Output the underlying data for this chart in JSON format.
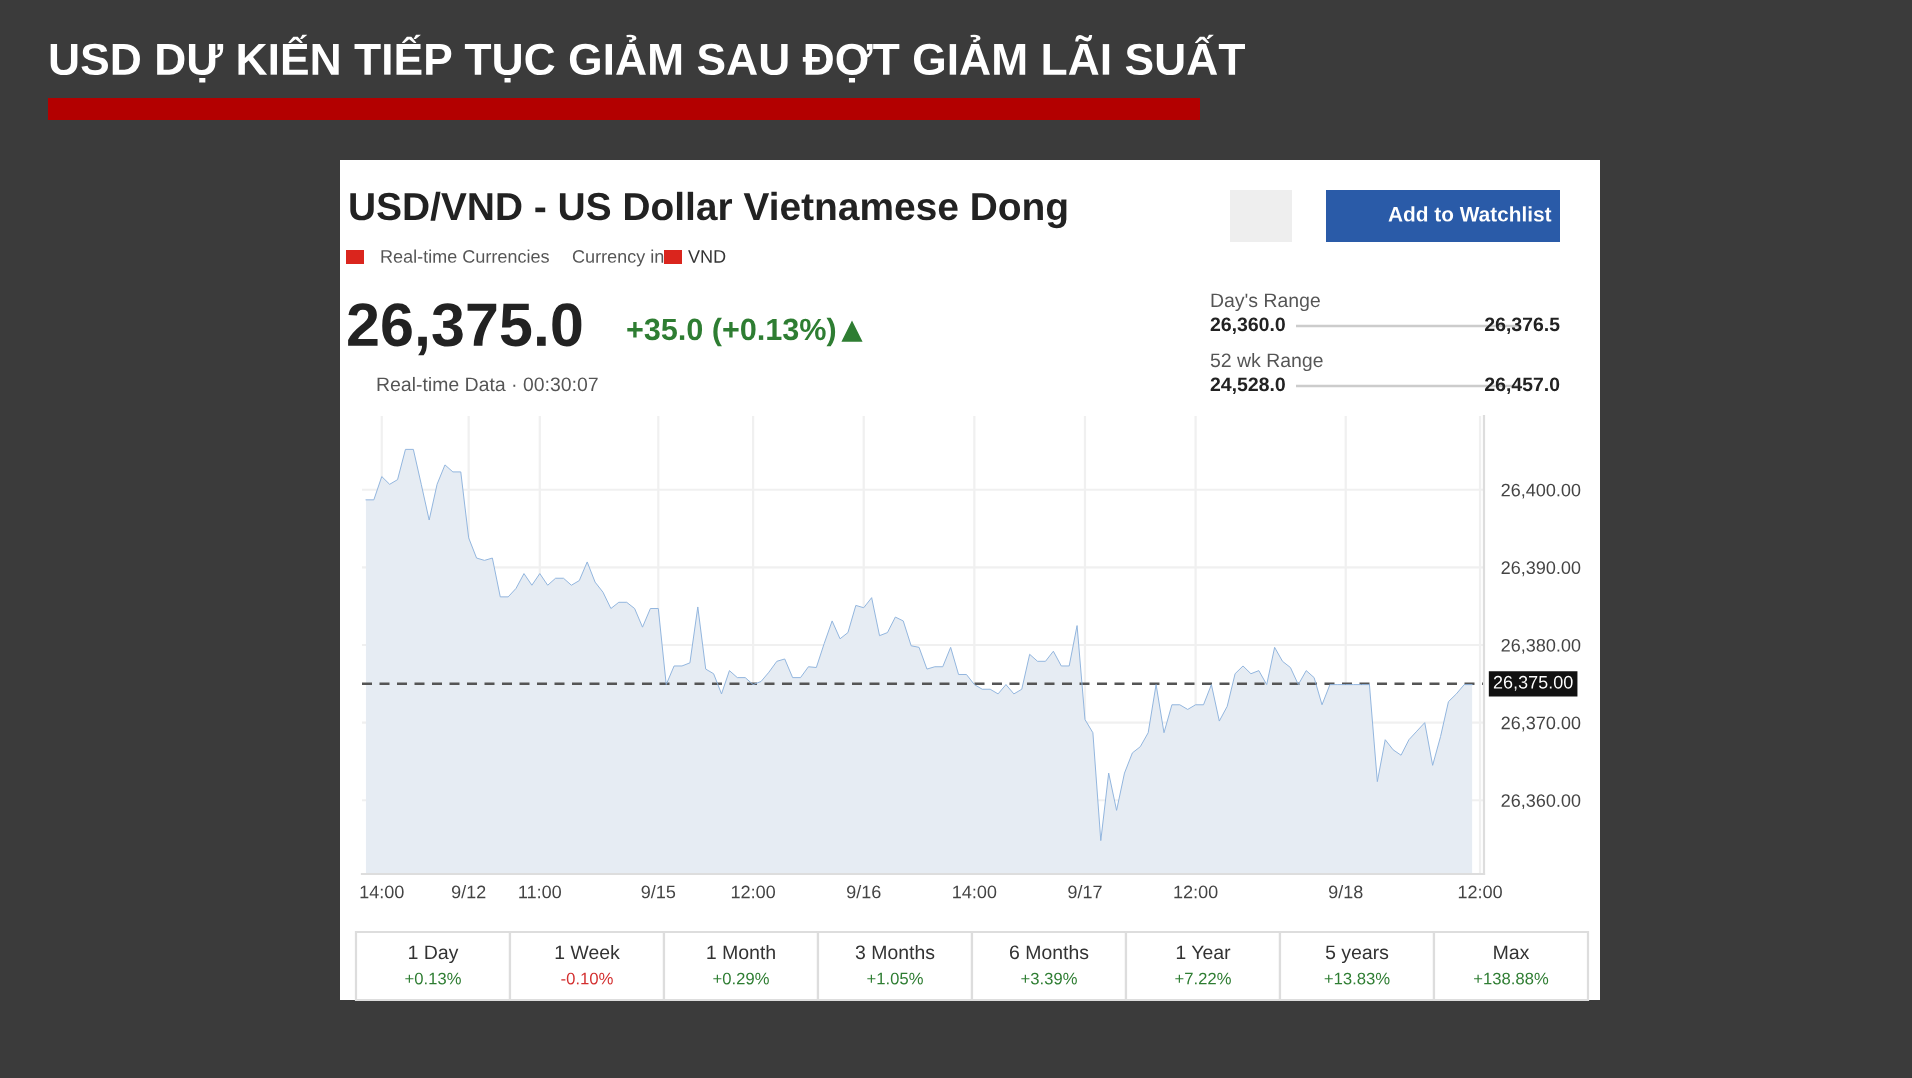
{
  "chart_data": {
    "type": "area",
    "title": "USD DỰ KIẾN TIẾP TỤC GIẢM SAU ĐỢT GIẢM LÃI SUẤT",
    "subtitle": "USD/VND - US Dollar Vietnamese Dong",
    "categories": [
      null,
      null,
      "14:00",
      null,
      null,
      null,
      null,
      null,
      null,
      null,
      null,
      null,
      null,
      "9/12",
      null,
      null,
      null,
      null,
      null,
      null,
      null,
      null,
      "11:00",
      null,
      null,
      null,
      null,
      null,
      null,
      null,
      null,
      null,
      null,
      null,
      null,
      null,
      null,
      "9/15",
      null,
      null,
      null,
      null,
      null,
      null,
      null,
      null,
      null,
      null,
      null,
      "12:00",
      null,
      null,
      null,
      null,
      null,
      null,
      null,
      null,
      null,
      null,
      null,
      null,
      null,
      "9/16",
      null,
      null,
      null,
      null,
      null,
      null,
      null,
      null,
      null,
      null,
      null,
      null,
      null,
      "14:00",
      null,
      null,
      null,
      null,
      null,
      null,
      null,
      null,
      null,
      null,
      null,
      null,
      null,
      "9/17",
      null,
      null,
      null,
      null,
      null,
      null,
      null,
      null,
      null,
      null,
      null,
      null,
      null,
      "12:00",
      null,
      null,
      null,
      null,
      null,
      null,
      null,
      null,
      null,
      null,
      null,
      null,
      null,
      null,
      null,
      null,
      null,
      null,
      "9/18",
      null,
      null,
      null,
      null,
      null,
      null,
      null,
      null,
      null,
      null,
      null,
      null,
      null,
      null,
      null,
      null,
      "12:00"
    ],
    "series": [
      {
        "color": "#8fb4dd",
        "values": [
          26398.7,
          26398.7,
          26401.7,
          26400.7,
          26401.3,
          26405.2,
          26405.2,
          26400.7,
          26396.1,
          26400.7,
          26403.2,
          26402.3,
          26402.3,
          26393.8,
          26391.2,
          26390.9,
          26391.2,
          26386.2,
          26386.2,
          26387.3,
          26389.2,
          26387.7,
          26389.2,
          26387.7,
          26388.6,
          26388.6,
          26387.7,
          26388.3,
          26390.7,
          26388.1,
          26386.8,
          26384.7,
          26385.5,
          26385.5,
          26384.7,
          26382.3,
          26384.7,
          26384.7,
          26374.9,
          26377.3,
          26377.3,
          26377.7,
          26384.9,
          26376.9,
          26376.3,
          26373.7,
          26376.7,
          26375.8,
          26375.8,
          26374.9,
          26375.3,
          26376.5,
          26377.9,
          26378.2,
          26375.8,
          26375.8,
          26377.2,
          26377.1,
          26380.2,
          26383.1,
          26380.8,
          26381.6,
          26385.1,
          26384.8,
          26386.1,
          26381.2,
          26381.6,
          26383.6,
          26383.1,
          26379.9,
          26379.7,
          26376.9,
          26377.2,
          26377.2,
          26379.7,
          26376.2,
          26376.2,
          26374.9,
          26374.3,
          26374.3,
          26373.7,
          26374.9,
          26373.7,
          26374.3,
          26378.8,
          26377.9,
          26377.9,
          26379.2,
          26377.3,
          26377.3,
          26382.5,
          26370.4,
          26368.7,
          26354.8,
          26363.5,
          26358.7,
          26363.5,
          26366.1,
          26366.9,
          26368.7,
          26374.9,
          26368.7,
          26372.3,
          26372.3,
          26371.7,
          26372.3,
          26372.3,
          26374.9,
          26370.2,
          26372.1,
          26376.3,
          26377.3,
          26376.3,
          26376.7,
          26374.9,
          26379.7,
          26377.9,
          26377.1,
          26374.9,
          26376.7,
          26375.8,
          26372.3,
          26374.9,
          26374.9,
          26374.9,
          26374.9,
          26374.9,
          26374.9,
          26362.4,
          26367.8,
          26366.5,
          26365.8,
          26367.8,
          26368.9,
          26370.0,
          26364.5,
          26368.2,
          26372.7,
          26373.7,
          26374.9,
          26374.9,
          null
        ]
      }
    ],
    "ylim": [
      26350.5,
      26409.5
    ],
    "yticks": [
      {
        "value": 26360,
        "label": "26,360.00"
      },
      {
        "value": 26370,
        "label": "26,370.00"
      },
      {
        "value": 26380,
        "label": "26,380.00"
      },
      {
        "value": 26390,
        "label": "26,390.00"
      },
      {
        "value": 26400,
        "label": "26,400.00"
      }
    ],
    "ref_lines": [
      {
        "axis": "y",
        "value": 26375,
        "label": "26,375.00",
        "color": "#555555",
        "line_style": "dashed"
      }
    ],
    "grid": true,
    "legend": false,
    "annotations": [
      "Real-time Currencies",
      "Currency in",
      "VND",
      "26,375.0",
      "+35.0 (+0.13%)",
      "Real-time Data · 00:30:07",
      "Day's Range",
      "26,360.0",
      "26,376.5",
      "52 wk Range",
      "24,528.0",
      "26,457.0",
      "Add to Watchlist",
      "1 Day",
      "+0.13%",
      "1 Week",
      "-0.10%",
      "1 Month",
      "+0.29%",
      "3 Months",
      "+1.05%",
      "6 Months",
      "+3.39%",
      "1 Year",
      "+7.22%",
      "5 years",
      "+13.83%",
      "Max",
      "+138.88%"
    ]
  }
}
